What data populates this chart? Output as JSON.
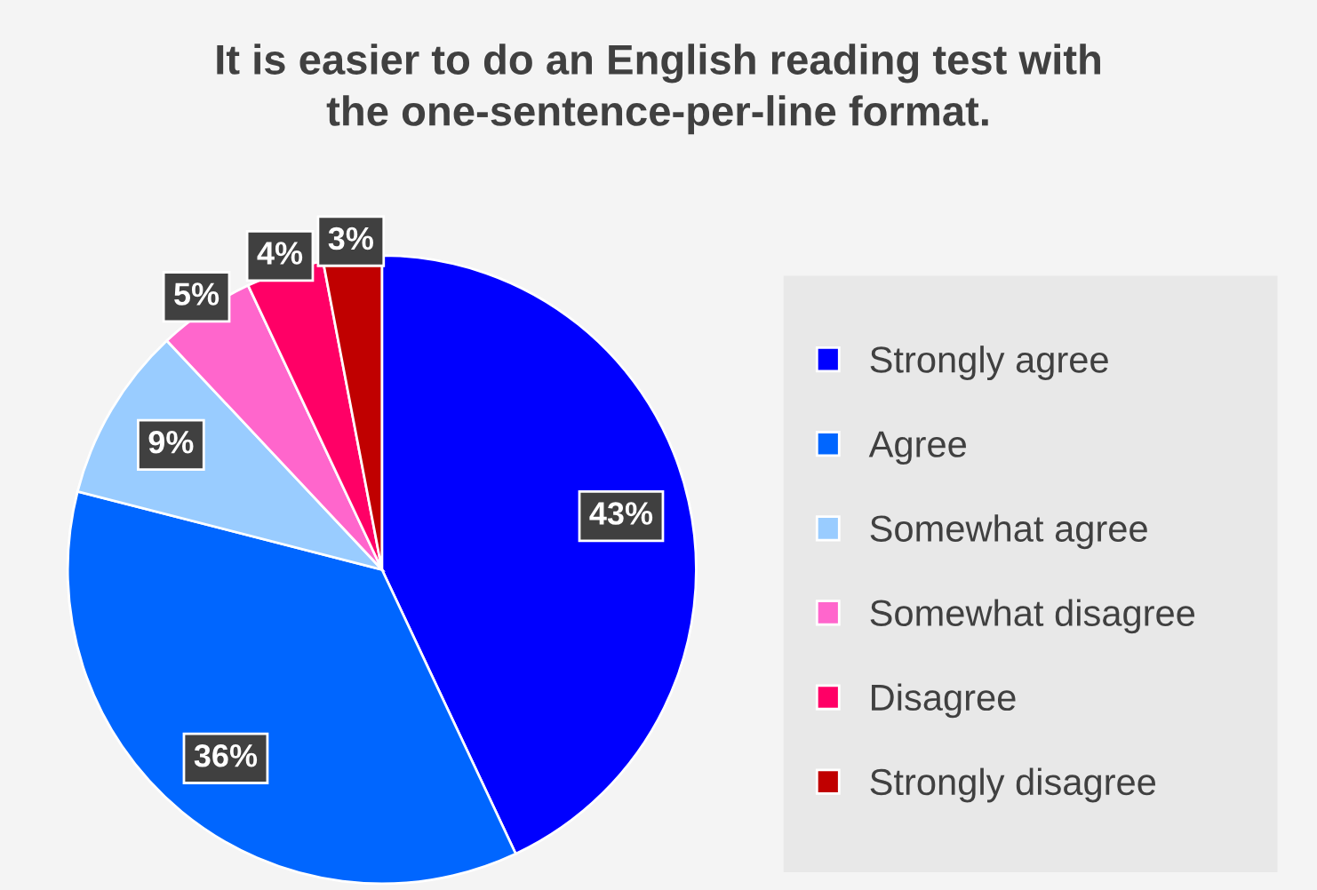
{
  "chart_data": {
    "type": "pie",
    "title": "It is easier to do an English reading test with\nthe one-sentence-per-line format.",
    "categories": [
      "Strongly agree",
      "Agree",
      "Somewhat agree",
      "Somewhat disagree",
      "Disagree",
      "Strongly disagree"
    ],
    "values": [
      43,
      36,
      9,
      5,
      4,
      3
    ],
    "value_labels": [
      "43%",
      "36%",
      "9%",
      "5%",
      "4%",
      "3%"
    ],
    "colors": [
      "#0000ff",
      "#0066ff",
      "#99ccff",
      "#ff66cc",
      "#ff0066",
      "#c00000"
    ],
    "legend": "right"
  }
}
